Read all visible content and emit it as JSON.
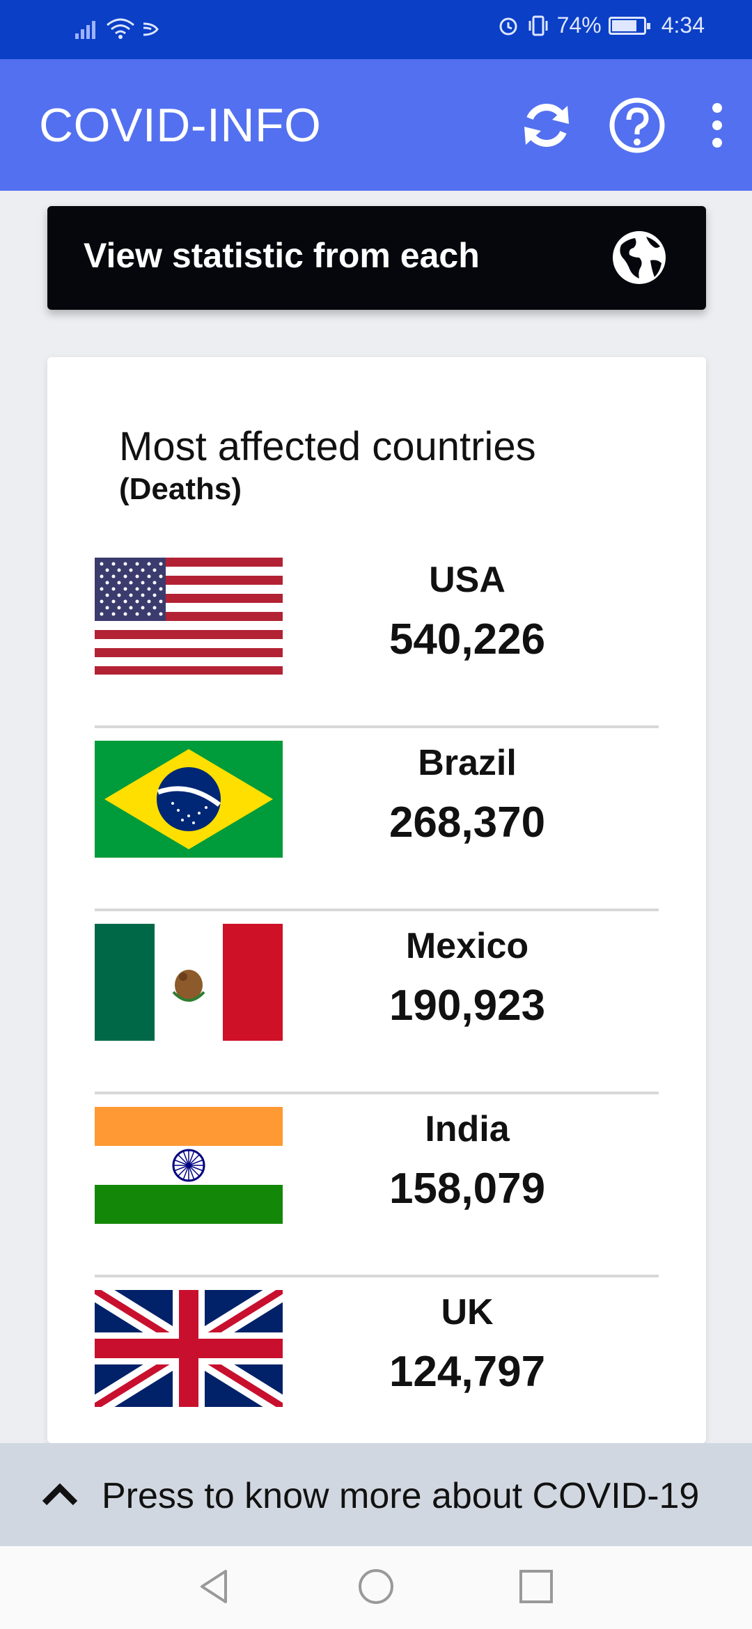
{
  "status_bar": {
    "battery_percent": "74%",
    "time": "4:34",
    "battery_level": 0.74
  },
  "app_bar": {
    "title": "COVID-INFO",
    "actions": [
      "refresh-icon",
      "help-icon",
      "more-vert-icon"
    ]
  },
  "banner": {
    "label": "View statistic from each",
    "icon": "globe-icon"
  },
  "card": {
    "title": "Most affected countries",
    "subtitle": "(Deaths)",
    "rows": [
      {
        "country": "USA",
        "deaths": "540,226",
        "flag": "usa-flag"
      },
      {
        "country": "Brazil",
        "deaths": "268,370",
        "flag": "brazil-flag"
      },
      {
        "country": "Mexico",
        "deaths": "190,923",
        "flag": "mexico-flag"
      },
      {
        "country": "India",
        "deaths": "158,079",
        "flag": "india-flag"
      },
      {
        "country": "UK",
        "deaths": "124,797",
        "flag": "uk-flag"
      }
    ]
  },
  "bottom_bar": {
    "label": "Press to know more about COVID-19",
    "icon": "chevron-up-icon"
  },
  "nav_bar": {
    "buttons": [
      "back-icon",
      "home-icon",
      "recents-icon"
    ]
  },
  "colors": {
    "status_bar": "#0a3fc6",
    "app_bar": "#5370f0",
    "banner": "#05070c",
    "bottom_bar": "#d0d7e0"
  }
}
